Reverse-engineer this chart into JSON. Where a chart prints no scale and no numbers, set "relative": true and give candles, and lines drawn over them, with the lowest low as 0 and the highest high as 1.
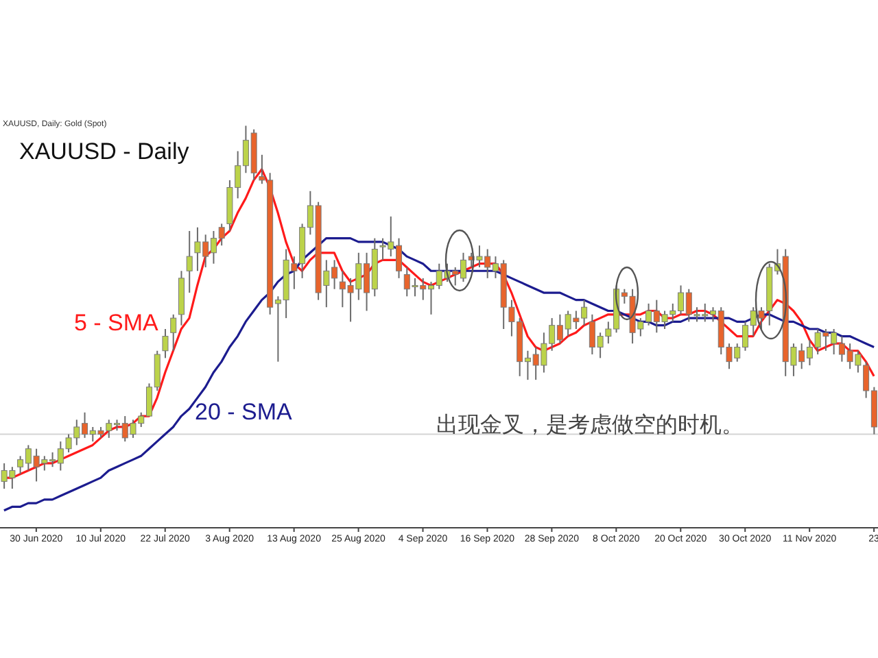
{
  "chart_data": {
    "type": "candlestick",
    "title": "XAUUSD - Daily",
    "subtitle": "XAUUSD, Daily: Gold (Spot)",
    "annotations": [
      "出现金叉，是考虑做空的时机。"
    ],
    "relative": true,
    "categories": [
      null,
      null,
      null,
      null,
      "30 Jun 2020",
      null,
      null,
      null,
      null,
      null,
      null,
      null,
      "10 Jul 2020",
      null,
      null,
      null,
      null,
      null,
      null,
      null,
      "22 Jul 2020",
      null,
      null,
      null,
      null,
      null,
      null,
      null,
      "3 Aug 2020",
      null,
      null,
      null,
      null,
      null,
      null,
      null,
      "13 Aug 2020",
      null,
      null,
      null,
      null,
      null,
      null,
      null,
      "25 Aug 2020",
      null,
      null,
      null,
      null,
      null,
      null,
      null,
      "4 Sep 2020",
      null,
      null,
      null,
      null,
      null,
      null,
      null,
      "16 Sep 2020",
      null,
      null,
      null,
      null,
      null,
      null,
      null,
      "28 Sep 2020",
      null,
      null,
      null,
      null,
      null,
      null,
      null,
      "8 Oct 2020",
      null,
      null,
      null,
      null,
      null,
      null,
      null,
      "20 Oct 2020",
      null,
      null,
      null,
      null,
      null,
      null,
      null,
      "30 Oct 2020",
      null,
      null,
      null,
      null,
      null,
      null,
      null,
      "11 Nov 2020",
      null,
      null,
      null,
      null,
      null,
      null,
      null,
      "23"
    ],
    "ohlc": [
      [
        0.02,
        0.07,
        0,
        0.05
      ],
      [
        0.03,
        0.06,
        0.0,
        0.05
      ],
      [
        0.06,
        0.09,
        0.04,
        0.08
      ],
      [
        0.07,
        0.12,
        0.05,
        0.11
      ],
      [
        0.09,
        0.11,
        0.02,
        0.06
      ],
      [
        0.07,
        0.09,
        0.05,
        0.08
      ],
      [
        0.08,
        0.1,
        0.06,
        0.08
      ],
      [
        0.07,
        0.13,
        0.05,
        0.11
      ],
      [
        0.11,
        0.15,
        0.1,
        0.14
      ],
      [
        0.14,
        0.19,
        0.12,
        0.17
      ],
      [
        0.18,
        0.21,
        0.14,
        0.15
      ],
      [
        0.15,
        0.17,
        0.13,
        0.16
      ],
      [
        0.16,
        0.17,
        0.14,
        0.15
      ],
      [
        0.16,
        0.19,
        0.14,
        0.18
      ],
      [
        0.18,
        0.19,
        0.16,
        0.18
      ],
      [
        0.18,
        0.2,
        0.13,
        0.14
      ],
      [
        0.15,
        0.19,
        0.14,
        0.18
      ],
      [
        0.18,
        0.21,
        0.17,
        0.2
      ],
      [
        0.2,
        0.29,
        0.2,
        0.28
      ],
      [
        0.28,
        0.38,
        0.27,
        0.37
      ],
      [
        0.38,
        0.44,
        0.36,
        0.42
      ],
      [
        0.43,
        0.48,
        0.38,
        0.47
      ],
      [
        0.48,
        0.6,
        0.45,
        0.58
      ],
      [
        0.6,
        0.71,
        0.54,
        0.64
      ],
      [
        0.65,
        0.72,
        0.6,
        0.68
      ],
      [
        0.68,
        0.7,
        0.61,
        0.64
      ],
      [
        0.65,
        0.71,
        0.62,
        0.69
      ],
      [
        0.72,
        0.73,
        0.67,
        0.69
      ],
      [
        0.73,
        0.85,
        0.71,
        0.83
      ],
      [
        0.83,
        0.93,
        0.8,
        0.89
      ],
      [
        0.89,
        1.0,
        0.87,
        0.96
      ],
      [
        0.98,
        0.99,
        0.85,
        0.87
      ],
      [
        0.86,
        0.92,
        0.84,
        0.85
      ],
      [
        0.85,
        0.87,
        0.48,
        0.5
      ],
      [
        0.51,
        0.53,
        0.35,
        0.52
      ],
      [
        0.52,
        0.66,
        0.47,
        0.63
      ],
      [
        0.62,
        0.64,
        0.55,
        0.6
      ],
      [
        0.62,
        0.73,
        0.58,
        0.72
      ],
      [
        0.72,
        0.82,
        0.7,
        0.78
      ],
      [
        0.78,
        0.79,
        0.52,
        0.54
      ],
      [
        0.56,
        0.63,
        0.5,
        0.6
      ],
      [
        0.61,
        0.63,
        0.55,
        0.58
      ],
      [
        0.57,
        0.6,
        0.5,
        0.55
      ],
      [
        0.56,
        0.58,
        0.46,
        0.54
      ],
      [
        0.55,
        0.65,
        0.52,
        0.62
      ],
      [
        0.62,
        0.65,
        0.49,
        0.54
      ],
      [
        0.55,
        0.69,
        0.53,
        0.66
      ],
      [
        0.67,
        0.69,
        0.63,
        0.67
      ],
      [
        0.66,
        0.75,
        0.64,
        0.68
      ],
      [
        0.67,
        0.69,
        0.58,
        0.6
      ],
      [
        0.59,
        0.61,
        0.53,
        0.55
      ],
      [
        0.56,
        0.58,
        0.53,
        0.56
      ],
      [
        0.56,
        0.58,
        0.52,
        0.55
      ],
      [
        0.55,
        0.57,
        0.48,
        0.56
      ],
      [
        0.56,
        0.62,
        0.55,
        0.6
      ],
      [
        0.58,
        0.62,
        0.57,
        0.6
      ],
      [
        0.6,
        0.61,
        0.56,
        0.59
      ],
      [
        0.58,
        0.65,
        0.57,
        0.63
      ],
      [
        0.64,
        0.65,
        0.61,
        0.63
      ],
      [
        0.63,
        0.67,
        0.61,
        0.64
      ],
      [
        0.64,
        0.66,
        0.58,
        0.61
      ],
      [
        0.6,
        0.64,
        0.58,
        0.62
      ],
      [
        0.62,
        0.63,
        0.44,
        0.5
      ],
      [
        0.5,
        0.52,
        0.42,
        0.46
      ],
      [
        0.46,
        0.47,
        0.31,
        0.35
      ],
      [
        0.35,
        0.38,
        0.3,
        0.36
      ],
      [
        0.37,
        0.39,
        0.3,
        0.34
      ],
      [
        0.34,
        0.43,
        0.32,
        0.4
      ],
      [
        0.4,
        0.47,
        0.38,
        0.45
      ],
      [
        0.45,
        0.48,
        0.4,
        0.41
      ],
      [
        0.44,
        0.49,
        0.42,
        0.48
      ],
      [
        0.47,
        0.49,
        0.44,
        0.46
      ],
      [
        0.47,
        0.52,
        0.45,
        0.5
      ],
      [
        0.46,
        0.48,
        0.37,
        0.39
      ],
      [
        0.39,
        0.43,
        0.36,
        0.42
      ],
      [
        0.42,
        0.46,
        0.4,
        0.44
      ],
      [
        0.44,
        0.56,
        0.43,
        0.55
      ],
      [
        0.54,
        0.55,
        0.51,
        0.53
      ],
      [
        0.53,
        0.55,
        0.4,
        0.43
      ],
      [
        0.44,
        0.47,
        0.42,
        0.46
      ],
      [
        0.46,
        0.51,
        0.45,
        0.49
      ],
      [
        0.49,
        0.52,
        0.43,
        0.46
      ],
      [
        0.46,
        0.49,
        0.44,
        0.48
      ],
      [
        0.48,
        0.51,
        0.46,
        0.49
      ],
      [
        0.49,
        0.56,
        0.48,
        0.54
      ],
      [
        0.54,
        0.55,
        0.46,
        0.48
      ],
      [
        0.48,
        0.5,
        0.46,
        0.48
      ],
      [
        0.48,
        0.51,
        0.46,
        0.48
      ],
      [
        0.48,
        0.5,
        0.46,
        0.49
      ],
      [
        0.49,
        0.5,
        0.37,
        0.39
      ],
      [
        0.39,
        0.4,
        0.33,
        0.35
      ],
      [
        0.36,
        0.4,
        0.35,
        0.39
      ],
      [
        0.39,
        0.46,
        0.38,
        0.45
      ],
      [
        0.45,
        0.5,
        0.42,
        0.49
      ],
      [
        0.49,
        0.5,
        0.44,
        0.47
      ],
      [
        0.49,
        0.62,
        0.45,
        0.61
      ],
      [
        0.6,
        0.66,
        0.59,
        0.62
      ],
      [
        0.64,
        0.66,
        0.31,
        0.35
      ],
      [
        0.34,
        0.4,
        0.31,
        0.39
      ],
      [
        0.38,
        0.4,
        0.33,
        0.35
      ],
      [
        0.36,
        0.41,
        0.34,
        0.39
      ],
      [
        0.39,
        0.44,
        0.37,
        0.43
      ],
      [
        0.43,
        0.44,
        0.38,
        0.42
      ],
      [
        0.4,
        0.44,
        0.37,
        0.43
      ],
      [
        0.4,
        0.42,
        0.35,
        0.37
      ],
      [
        0.38,
        0.4,
        0.33,
        0.35
      ],
      [
        0.34,
        0.38,
        0.32,
        0.37
      ],
      [
        0.34,
        0.35,
        0.25,
        0.27
      ],
      [
        0.27,
        0.28,
        0.15,
        0.17
      ]
    ],
    "colors": [
      "#bcd34a",
      "#bcd34a",
      "#bcd34a",
      "#bcd34a",
      "#e8642c",
      "#bcd34a",
      "#bcd34a",
      "#bcd34a",
      "#bcd34a",
      "#bcd34a",
      "#e8642c",
      "#bcd34a",
      "#e8642c",
      "#bcd34a",
      "#bcd34a",
      "#e8642c",
      "#bcd34a",
      "#bcd34a",
      "#bcd34a",
      "#bcd34a",
      "#bcd34a",
      "#bcd34a",
      "#bcd34a",
      "#bcd34a",
      "#bcd34a",
      "#e8642c",
      "#bcd34a",
      "#e8642c",
      "#bcd34a",
      "#bcd34a",
      "#bcd34a",
      "#e8642c",
      "#e8642c",
      "#e8642c",
      "#bcd34a",
      "#bcd34a",
      "#e8642c",
      "#bcd34a",
      "#bcd34a",
      "#e8642c",
      "#bcd34a",
      "#e8642c",
      "#e8642c",
      "#e8642c",
      "#bcd34a",
      "#e8642c",
      "#bcd34a",
      "#bcd34a",
      "#bcd34a",
      "#e8642c",
      "#e8642c",
      "#bcd34a",
      "#e8642c",
      "#bcd34a",
      "#bcd34a",
      "#bcd34a",
      "#e8642c",
      "#bcd34a",
      "#e8642c",
      "#bcd34a",
      "#e8642c",
      "#bcd34a",
      "#e8642c",
      "#e8642c",
      "#e8642c",
      "#bcd34a",
      "#e8642c",
      "#bcd34a",
      "#bcd34a",
      "#e8642c",
      "#bcd34a",
      "#e8642c",
      "#bcd34a",
      "#e8642c",
      "#bcd34a",
      "#bcd34a",
      "#bcd34a",
      "#e8642c",
      "#e8642c",
      "#bcd34a",
      "#bcd34a",
      "#e8642c",
      "#bcd34a",
      "#bcd34a",
      "#bcd34a",
      "#e8642c",
      "#bcd34a",
      "#bcd34a",
      "#bcd34a",
      "#e8642c",
      "#e8642c",
      "#bcd34a",
      "#bcd34a",
      "#bcd34a",
      "#e8642c",
      "#bcd34a",
      "#bcd34a",
      "#e8642c",
      "#bcd34a",
      "#e8642c",
      "#bcd34a",
      "#bcd34a",
      "#e8642c",
      "#bcd34a",
      "#e8642c",
      "#e8642c",
      "#bcd34a",
      "#e8642c",
      "#e8642c"
    ],
    "series": [
      {
        "name": "5 - SMA",
        "type": "line",
        "color": "#ff1a1a",
        "values": [
          0.03,
          0.03,
          0.04,
          0.05,
          0.06,
          0.07,
          0.07,
          0.08,
          0.09,
          0.1,
          0.11,
          0.12,
          0.14,
          0.16,
          0.17,
          0.17,
          0.18,
          0.2,
          0.2,
          0.25,
          0.32,
          0.38,
          0.44,
          0.47,
          0.56,
          0.64,
          0.66,
          0.69,
          0.71,
          0.76,
          0.8,
          0.85,
          0.88,
          0.83,
          0.76,
          0.68,
          0.62,
          0.6,
          0.63,
          0.65,
          0.65,
          0.65,
          0.6,
          0.57,
          0.58,
          0.59,
          0.62,
          0.63,
          0.63,
          0.63,
          0.61,
          0.59,
          0.57,
          0.56,
          0.57,
          0.58,
          0.59,
          0.6,
          0.61,
          0.62,
          0.62,
          0.62,
          0.59,
          0.54,
          0.48,
          0.42,
          0.39,
          0.38,
          0.39,
          0.4,
          0.42,
          0.43,
          0.45,
          0.46,
          0.47,
          0.48,
          0.48,
          0.48,
          0.48,
          0.48,
          0.49,
          0.49,
          0.47,
          0.47,
          0.48,
          0.48,
          0.49,
          0.49,
          0.48,
          0.46,
          0.44,
          0.42,
          0.42,
          0.42,
          0.46,
          0.49,
          0.52,
          0.51,
          0.49,
          0.46,
          0.41,
          0.38,
          0.39,
          0.4,
          0.4,
          0.38,
          0.38,
          0.35,
          0.31
        ]
      },
      {
        "name": "20 - SMA",
        "type": "line",
        "color": "#1c1c8f",
        "values": [
          -0.06,
          -0.05,
          -0.05,
          -0.04,
          -0.04,
          -0.03,
          -0.03,
          -0.02,
          -0.01,
          0.0,
          0.01,
          0.02,
          0.03,
          0.05,
          0.06,
          0.07,
          0.08,
          0.09,
          0.11,
          0.13,
          0.15,
          0.17,
          0.2,
          0.22,
          0.25,
          0.28,
          0.32,
          0.35,
          0.39,
          0.42,
          0.46,
          0.49,
          0.52,
          0.54,
          0.57,
          0.59,
          0.6,
          0.63,
          0.65,
          0.67,
          0.69,
          0.69,
          0.69,
          0.69,
          0.68,
          0.68,
          0.68,
          0.68,
          0.67,
          0.66,
          0.64,
          0.63,
          0.62,
          0.6,
          0.6,
          0.6,
          0.6,
          0.6,
          0.6,
          0.6,
          0.6,
          0.6,
          0.59,
          0.58,
          0.57,
          0.56,
          0.55,
          0.54,
          0.54,
          0.54,
          0.53,
          0.52,
          0.52,
          0.51,
          0.5,
          0.49,
          0.49,
          0.48,
          0.47,
          0.46,
          0.46,
          0.45,
          0.45,
          0.46,
          0.46,
          0.47,
          0.47,
          0.47,
          0.47,
          0.47,
          0.47,
          0.46,
          0.46,
          0.47,
          0.48,
          0.48,
          0.47,
          0.46,
          0.46,
          0.45,
          0.44,
          0.44,
          0.43,
          0.43,
          0.42,
          0.42,
          0.41,
          0.4,
          0.39
        ]
      }
    ],
    "ref_lines": [
      {
        "axis": "y",
        "value": 0.15,
        "color": "#d4d4d4"
      }
    ]
  }
}
